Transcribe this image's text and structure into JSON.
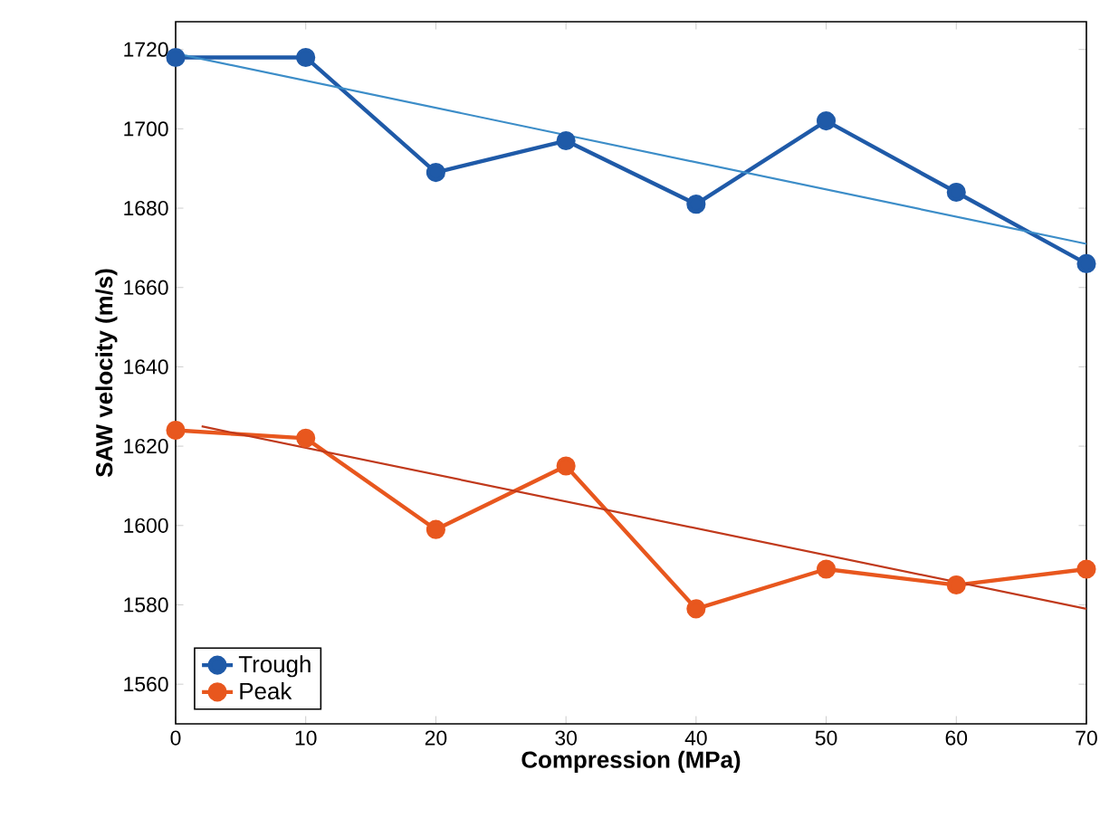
{
  "chart_data": {
    "type": "line",
    "xlabel": "Compression (MPa)",
    "ylabel": "SAW velocity (m/s)",
    "xlim": [
      0,
      70
    ],
    "ylim": [
      1550,
      1727
    ],
    "xticks": [
      0,
      10,
      20,
      30,
      40,
      50,
      60,
      70
    ],
    "yticks": [
      1560,
      1580,
      1600,
      1620,
      1640,
      1660,
      1680,
      1700,
      1720
    ],
    "grid": false,
    "legend": "bottom left",
    "marker": "circle",
    "line_style": "solid",
    "series": [
      {
        "name": "Trough",
        "color": "#1f5aa8",
        "x": [
          0,
          10,
          20,
          30,
          40,
          50,
          60,
          70
        ],
        "values": [
          1718,
          1718,
          1689,
          1697,
          1681,
          1702,
          1684,
          1666
        ]
      },
      {
        "name": "Peak",
        "color": "#e8571e",
        "x": [
          0,
          10,
          20,
          30,
          40,
          50,
          60,
          70
        ],
        "values": [
          1624,
          1622,
          1599,
          1615,
          1579,
          1589,
          1585,
          1589
        ]
      },
      {
        "type": "line",
        "marker": "none",
        "color": "#3c8dc8",
        "x": [
          0,
          70
        ],
        "values": [
          1719,
          1671
        ]
      },
      {
        "type": "line",
        "marker": "none",
        "color": "#c0391b",
        "x": [
          2,
          70
        ],
        "values": [
          1625,
          1579
        ]
      }
    ]
  }
}
